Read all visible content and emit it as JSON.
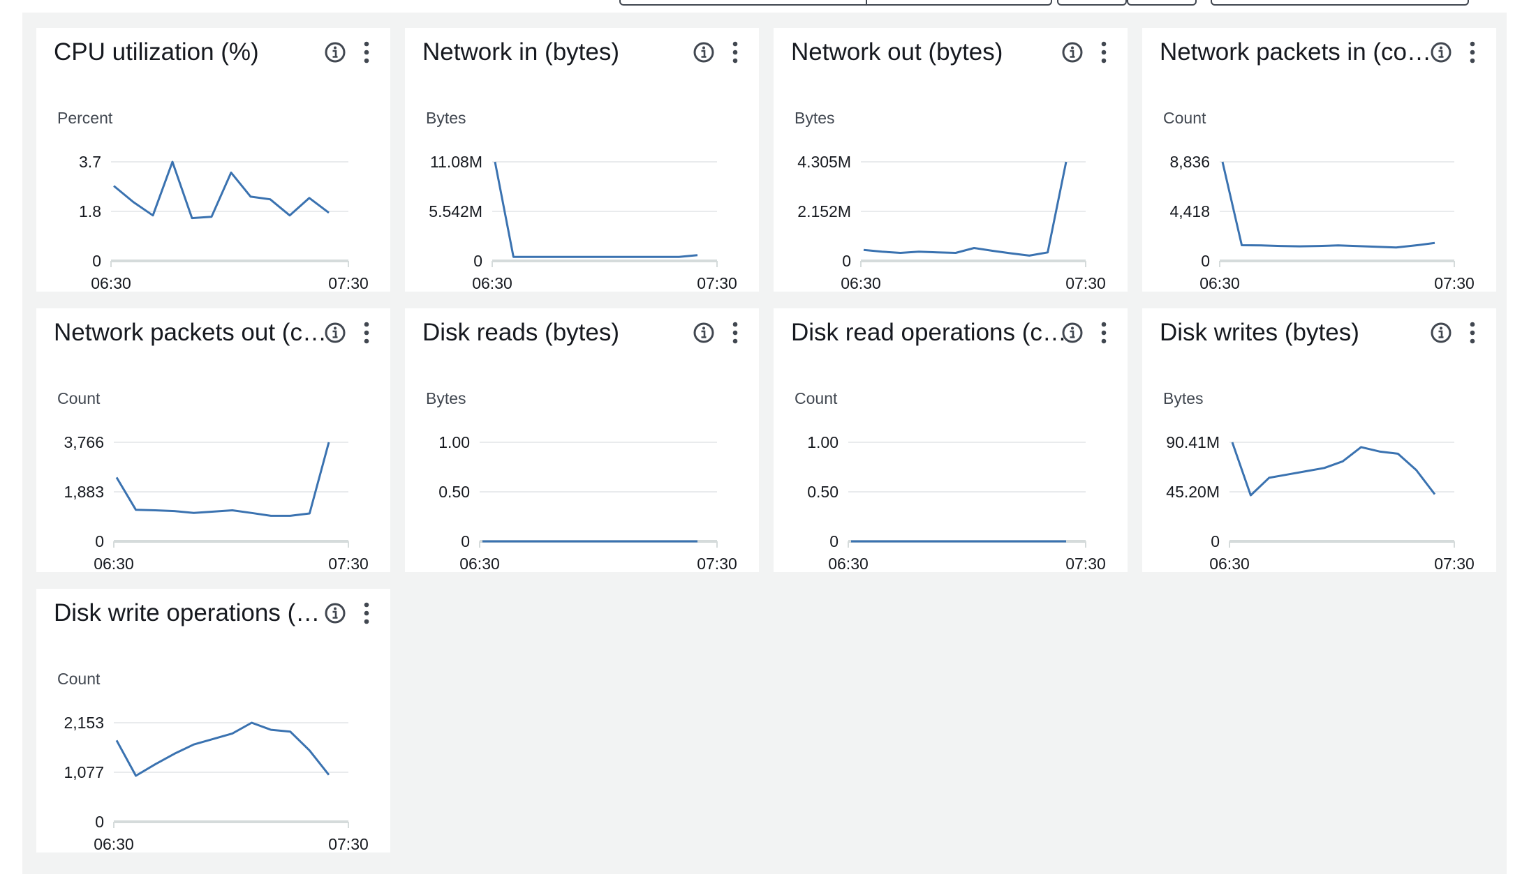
{
  "colors": {
    "background": "#f2f3f3",
    "card": "#ffffff",
    "series": "#3a72b0",
    "gridline": "#e9ebed",
    "baseline": "#d5dbdb",
    "text": "#16191f"
  },
  "icons": {
    "info": "info-circle-icon",
    "menu": "vertical-ellipsis-icon"
  },
  "widgets": [
    {
      "title": "CPU utilization (%)",
      "unit": "Percent"
    },
    {
      "title": "Network in (bytes)",
      "unit": "Bytes"
    },
    {
      "title": "Network out (bytes)",
      "unit": "Bytes"
    },
    {
      "title": "Network packets in (count)",
      "unit": "Count"
    },
    {
      "title": "Network packets out (count)",
      "unit": "Count"
    },
    {
      "title": "Disk reads (bytes)",
      "unit": "Bytes"
    },
    {
      "title": "Disk read operations (count)",
      "unit": "Count"
    },
    {
      "title": "Disk writes (bytes)",
      "unit": "Bytes"
    },
    {
      "title": "Disk write operations (count)",
      "unit": "Count"
    }
  ],
  "chart_data": [
    {
      "type": "line",
      "title": "CPU utilization (%)",
      "ylabel": "Percent",
      "x_ticks": [
        "06:30",
        "07:30"
      ],
      "y_ticks": [
        "0",
        "1.8",
        "3.7"
      ],
      "ylim": [
        0,
        3.7
      ],
      "x": [
        "06:30",
        "06:35",
        "06:40",
        "06:45",
        "06:50",
        "06:55",
        "07:00",
        "07:05",
        "07:10",
        "07:15",
        "07:20",
        "07:25"
      ],
      "series": [
        {
          "values": [
            2.8,
            2.2,
            1.7,
            3.7,
            1.6,
            1.65,
            3.3,
            2.4,
            2.3,
            1.7,
            2.35,
            1.8
          ]
        }
      ]
    },
    {
      "type": "line",
      "title": "Network in (bytes)",
      "ylabel": "Bytes",
      "x_ticks": [
        "06:30",
        "07:30"
      ],
      "y_ticks": [
        "0",
        "5.542M",
        "11.08M"
      ],
      "ylim": [
        0,
        11080000
      ],
      "x": [
        "06:30",
        "06:35",
        "06:40",
        "06:45",
        "06:50",
        "06:55",
        "07:00",
        "07:05",
        "07:10",
        "07:15",
        "07:20",
        "07:25"
      ],
      "series": [
        {
          "values": [
            11080000,
            450000,
            450000,
            450000,
            450000,
            450000,
            450000,
            450000,
            450000,
            450000,
            450000,
            650000
          ]
        }
      ]
    },
    {
      "type": "line",
      "title": "Network out (bytes)",
      "ylabel": "Bytes",
      "x_ticks": [
        "06:30",
        "07:30"
      ],
      "y_ticks": [
        "0",
        "2.152M",
        "4.305M"
      ],
      "ylim": [
        0,
        4305000
      ],
      "x": [
        "06:30",
        "06:35",
        "06:40",
        "06:45",
        "06:50",
        "06:55",
        "07:00",
        "07:05",
        "07:10",
        "07:15",
        "07:20",
        "07:25"
      ],
      "series": [
        {
          "values": [
            480000,
            400000,
            350000,
            400000,
            370000,
            350000,
            560000,
            440000,
            330000,
            230000,
            370000,
            4305000
          ]
        }
      ]
    },
    {
      "type": "line",
      "title": "Network packets in (count)",
      "ylabel": "Count",
      "x_ticks": [
        "06:30",
        "07:30"
      ],
      "y_ticks": [
        "0",
        "4,418",
        "8,836"
      ],
      "ylim": [
        0,
        8836
      ],
      "x": [
        "06:30",
        "06:35",
        "06:40",
        "06:45",
        "06:50",
        "06:55",
        "07:00",
        "07:05",
        "07:10",
        "07:15",
        "07:20",
        "07:25"
      ],
      "series": [
        {
          "values": [
            8836,
            1400,
            1380,
            1330,
            1300,
            1330,
            1380,
            1320,
            1260,
            1200,
            1380,
            1600
          ]
        }
      ]
    },
    {
      "type": "line",
      "title": "Network packets out (count)",
      "ylabel": "Count",
      "x_ticks": [
        "06:30",
        "07:30"
      ],
      "y_ticks": [
        "0",
        "1,883",
        "3,766"
      ],
      "ylim": [
        0,
        3766
      ],
      "x": [
        "06:30",
        "06:35",
        "06:40",
        "06:45",
        "06:50",
        "06:55",
        "07:00",
        "07:05",
        "07:10",
        "07:15",
        "07:20",
        "07:25"
      ],
      "series": [
        {
          "values": [
            2430,
            1200,
            1180,
            1150,
            1080,
            1130,
            1180,
            1080,
            970,
            970,
            1060,
            3766
          ]
        }
      ]
    },
    {
      "type": "line",
      "title": "Disk reads (bytes)",
      "ylabel": "Bytes",
      "x_ticks": [
        "06:30",
        "07:30"
      ],
      "y_ticks": [
        "0",
        "0.50",
        "1.00"
      ],
      "ylim": [
        0,
        1.0
      ],
      "x": [
        "06:30",
        "06:35",
        "06:40",
        "06:45",
        "06:50",
        "06:55",
        "07:00",
        "07:05",
        "07:10",
        "07:15",
        "07:20",
        "07:25"
      ],
      "series": [
        {
          "values": [
            0,
            0,
            0,
            0,
            0,
            0,
            0,
            0,
            0,
            0,
            0,
            0
          ]
        }
      ]
    },
    {
      "type": "line",
      "title": "Disk read operations (count)",
      "ylabel": "Count",
      "x_ticks": [
        "06:30",
        "07:30"
      ],
      "y_ticks": [
        "0",
        "0.50",
        "1.00"
      ],
      "ylim": [
        0,
        1.0
      ],
      "x": [
        "06:30",
        "06:35",
        "06:40",
        "06:45",
        "06:50",
        "06:55",
        "07:00",
        "07:05",
        "07:10",
        "07:15",
        "07:20",
        "07:25"
      ],
      "series": [
        {
          "values": [
            0,
            0,
            0,
            0,
            0,
            0,
            0,
            0,
            0,
            0,
            0,
            0
          ]
        }
      ]
    },
    {
      "type": "line",
      "title": "Disk writes (bytes)",
      "ylabel": "Bytes",
      "x_ticks": [
        "06:30",
        "07:30"
      ],
      "y_ticks": [
        "0",
        "45.20M",
        "90.41M"
      ],
      "ylim": [
        0,
        90410000
      ],
      "x": [
        "06:30",
        "06:35",
        "06:40",
        "06:45",
        "06:50",
        "06:55",
        "07:00",
        "07:05",
        "07:10",
        "07:15",
        "07:20",
        "07:25"
      ],
      "series": [
        {
          "values": [
            90410000,
            42000000,
            58000000,
            61000000,
            64000000,
            67000000,
            73000000,
            86000000,
            82000000,
            80000000,
            65000000,
            43000000
          ]
        }
      ]
    },
    {
      "type": "line",
      "title": "Disk write operations (count)",
      "ylabel": "Count",
      "x_ticks": [
        "06:30",
        "07:30"
      ],
      "y_ticks": [
        "0",
        "1,077",
        "2,153"
      ],
      "ylim": [
        0,
        2153
      ],
      "x": [
        "06:30",
        "06:35",
        "06:40",
        "06:45",
        "06:50",
        "06:55",
        "07:00",
        "07:05",
        "07:10",
        "07:15",
        "07:20",
        "07:25"
      ],
      "series": [
        {
          "values": [
            1770,
            1000,
            1250,
            1480,
            1680,
            1800,
            1920,
            2153,
            2000,
            1960,
            1550,
            1020
          ]
        }
      ]
    }
  ]
}
